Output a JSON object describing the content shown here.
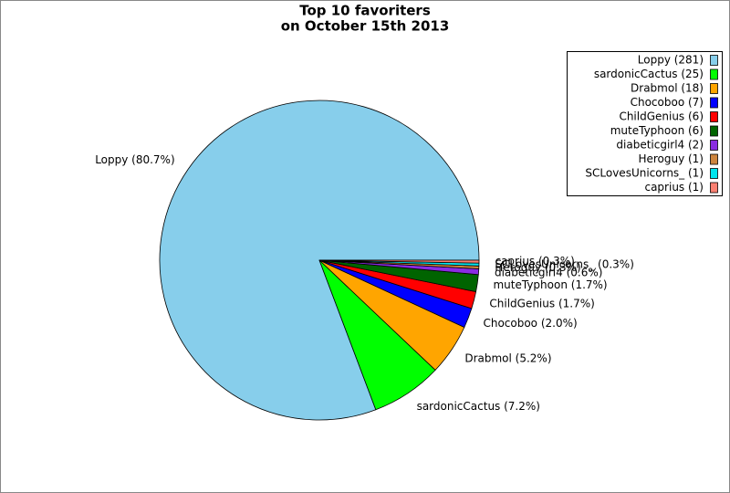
{
  "chart_data": {
    "type": "pie",
    "title": "Top 10 favoriters",
    "subtitle": "on October 15th 2013",
    "values": [
      281,
      25,
      18,
      7,
      6,
      6,
      2,
      1,
      1,
      1
    ],
    "legend_labels": [
      "Loppy (281)",
      "sardonicCactus (25)",
      "Drabmol (18)",
      "Chocoboo (7)",
      "ChildGenius (6)",
      "muteTyphoon (6)",
      "diabeticgirl4 (2)",
      "Heroguy (1)",
      "SCLovesUnicorns_ (1)",
      "caprius (1)"
    ],
    "value_labels": [
      "Loppy (80.7%)",
      "sardonicCactus (7.2%)",
      "Drabmol (5.2%)",
      "Chocoboo (2.0%)",
      "ChildGenius (1.7%)",
      "muteTyphoon (1.7%)",
      "diabeticgirl4 (0.6%)",
      "Heroguy (0.3%)",
      "SCLovesUnicorns_ (0.3%)",
      "caprius (0.3%)"
    ],
    "colors": [
      "#87ceeb",
      "#00ff00",
      "#ffa500",
      "#0000ff",
      "#ff0000",
      "#006400",
      "#8a2be2",
      "#cd853f",
      "#00e5ee",
      "#fa8072"
    ],
    "legend": "upper right"
  }
}
